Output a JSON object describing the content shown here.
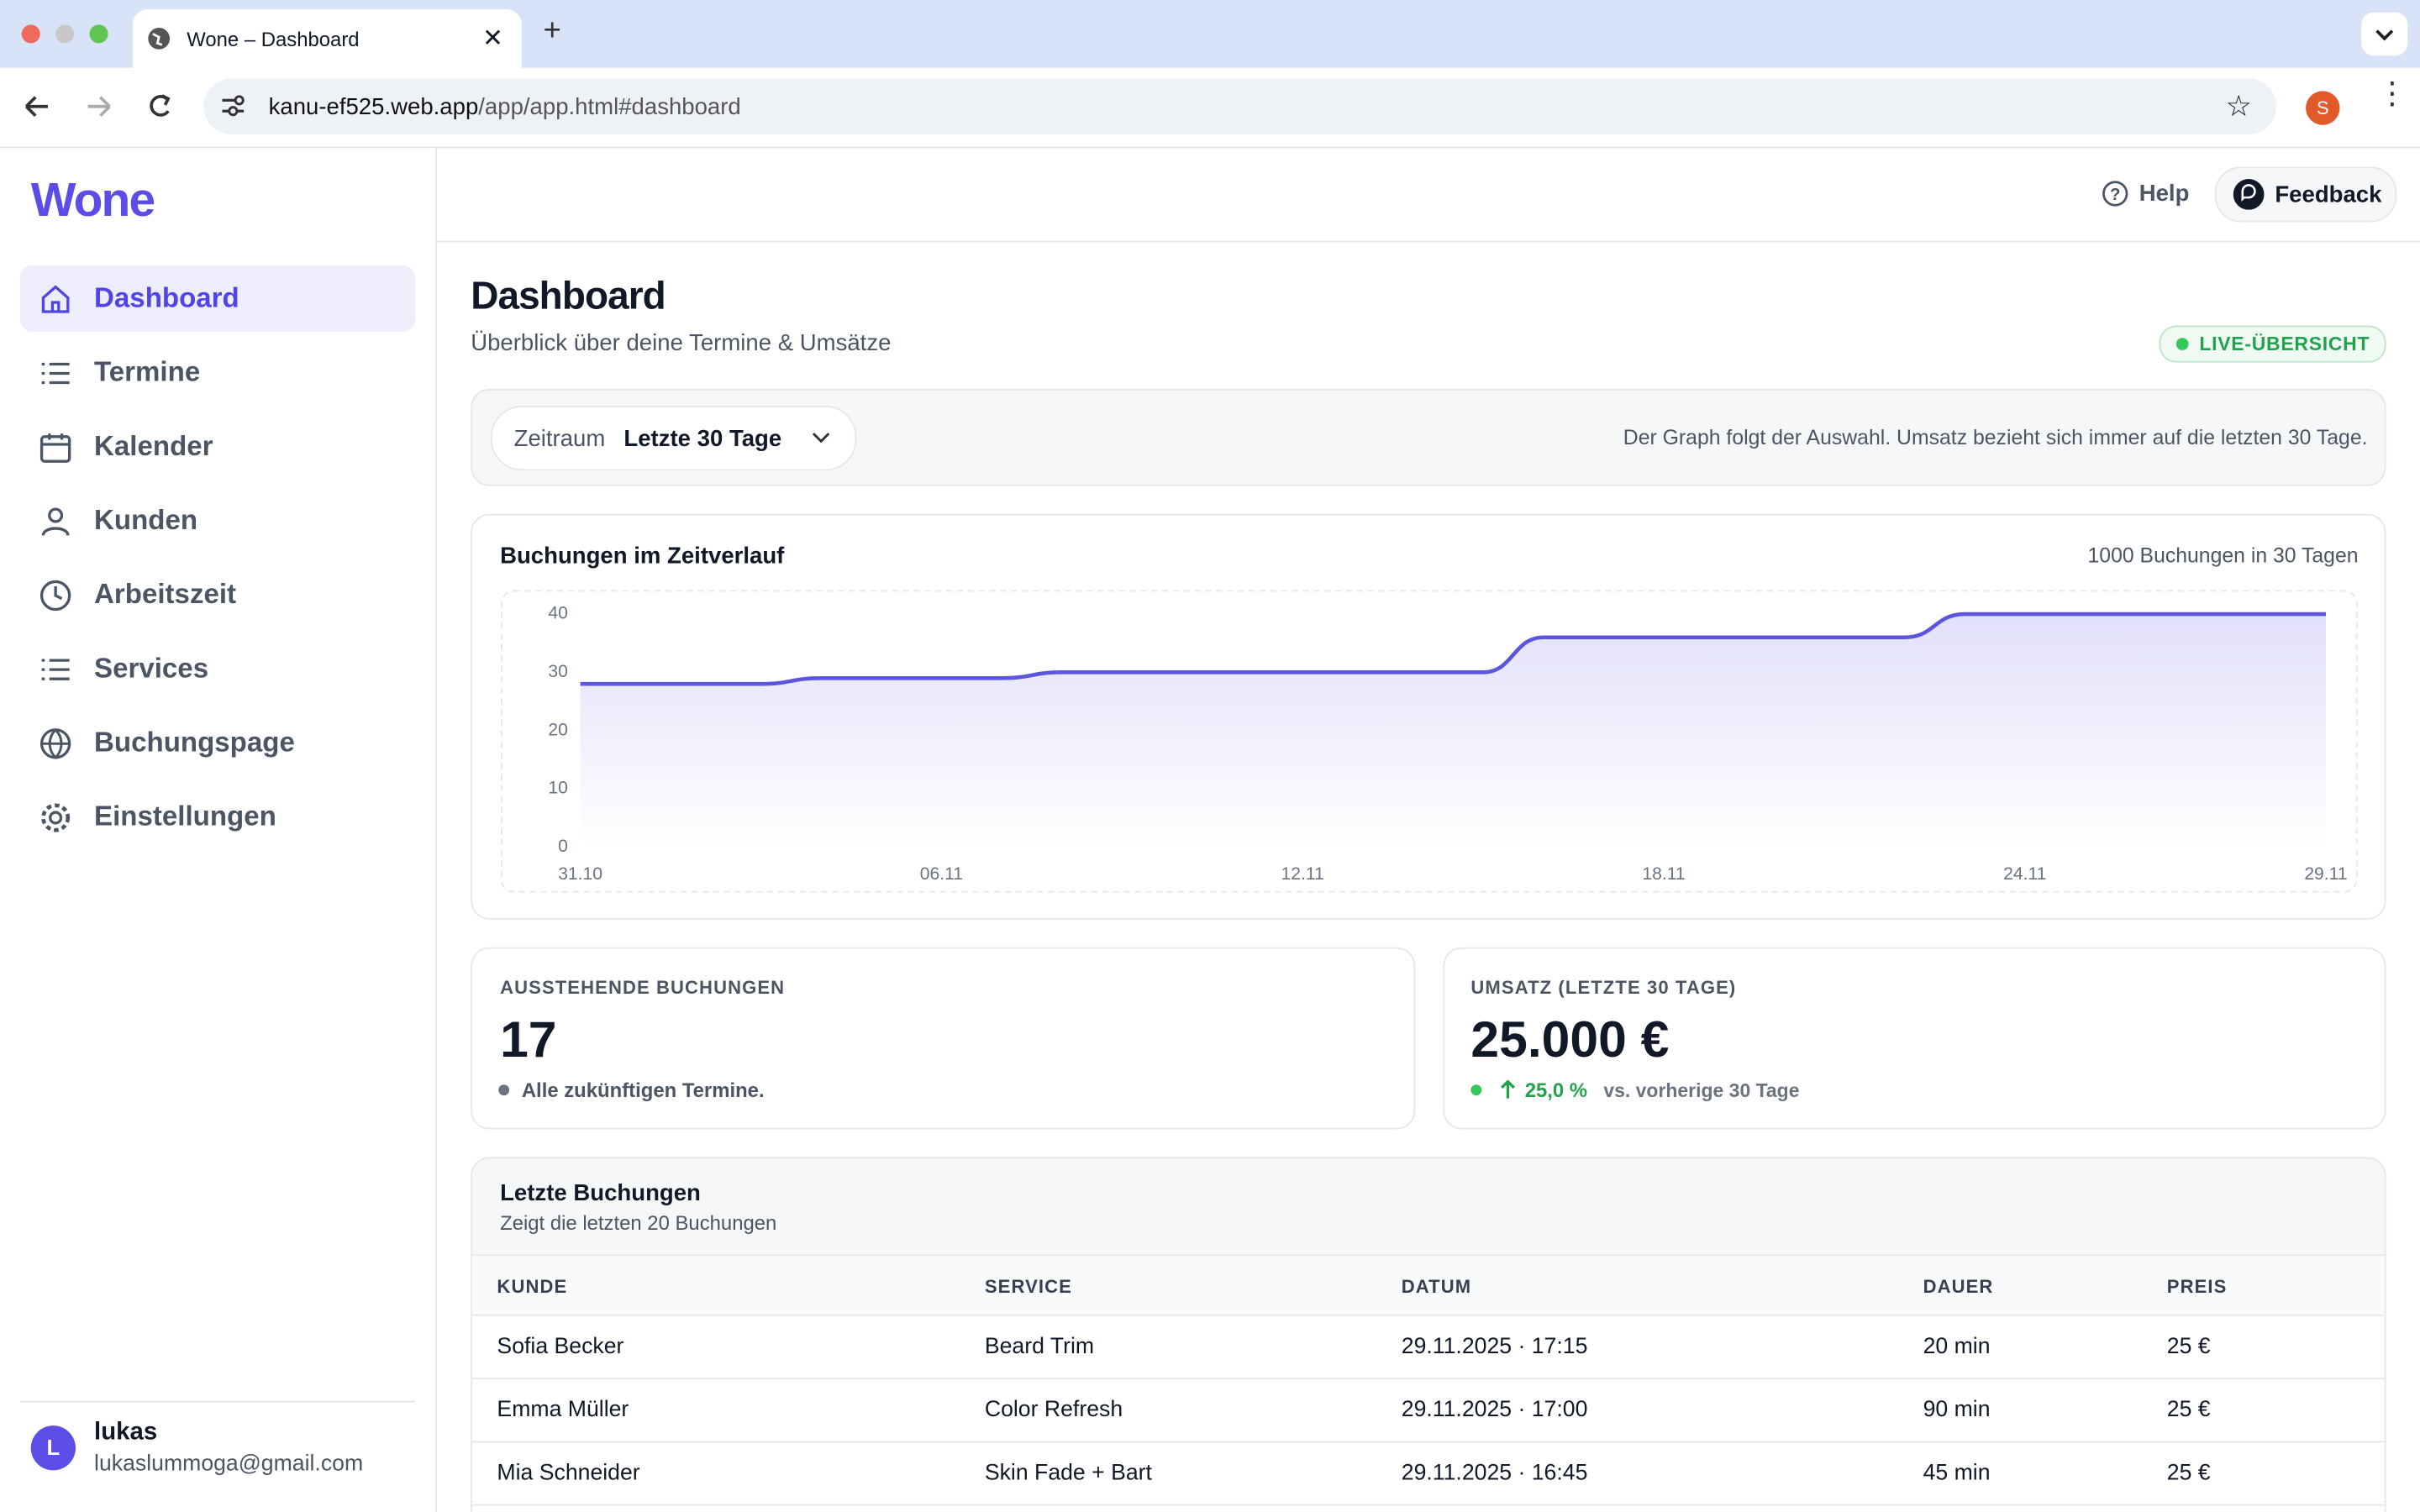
{
  "browser": {
    "tab_title": "Wone – Dashboard",
    "url_host": "kanu-ef525.web.app",
    "url_path": "/app/app.html#dashboard",
    "profile": "S"
  },
  "sidebar": {
    "logo": "Wone",
    "nav": [
      "Dashboard",
      "Termine",
      "Kalender",
      "Kunden",
      "Arbeitszeit",
      "Services",
      "Buchungspage",
      "Einstellungen"
    ],
    "user": {
      "initial": "L",
      "name": "lukas",
      "email": "lukaslummoga@gmail.com"
    }
  },
  "topbar": {
    "help": "Help",
    "feedback": "Feedback"
  },
  "page": {
    "title": "Dashboard",
    "subtitle": "Überblick über deine Termine & Umsätze",
    "badge": "LIVE-ÜBERSICHT"
  },
  "filter": {
    "label": "Zeitraum",
    "value": "Letzte 30 Tage",
    "note": "Der Graph folgt der Auswahl. Umsatz bezieht sich immer auf die letzten 30 Tage."
  },
  "chart_data": {
    "type": "line",
    "title": "Buchungen im Zeitverlauf",
    "summary": "1000 Buchungen in 30 Tagen",
    "categories": [
      "31.10",
      null,
      null,
      null,
      null,
      null,
      "06.11",
      null,
      null,
      null,
      null,
      null,
      "12.11",
      null,
      null,
      null,
      null,
      null,
      "18.11",
      null,
      null,
      null,
      null,
      null,
      "24.11",
      null,
      null,
      null,
      null,
      "29.11"
    ],
    "values": [
      28,
      28,
      28,
      28,
      29,
      29,
      29,
      29,
      30,
      30,
      30,
      30,
      30,
      30,
      30,
      30,
      36,
      36,
      36,
      36,
      36,
      36,
      36,
      40,
      40,
      40,
      40,
      40,
      40,
      40
    ],
    "color": "#5b55e0",
    "ylim": [
      0,
      40
    ],
    "yticks": [
      0,
      10,
      20,
      30,
      40
    ],
    "grid": false
  },
  "stats": [
    {
      "label": "AUSSTEHENDE BUCHUNGEN",
      "value": "17",
      "note": "Alle zukünftigen Termine."
    },
    {
      "label": "UMSATZ (LETZTE 30 TAGE)",
      "value": "25.000 €",
      "change": "25,0 %",
      "note": "vs. vorherige 30 Tage"
    }
  ],
  "table": {
    "title": "Letzte Buchungen",
    "subtitle": "Zeigt die letzten 20 Buchungen",
    "columns": [
      "KUNDE",
      "SERVICE",
      "DATUM",
      "DAUER",
      "PREIS"
    ],
    "rows": [
      [
        "Sofia Becker",
        "Beard Trim",
        "29.11.2025 · 17:15",
        "20 min",
        "25 €"
      ],
      [
        "Emma Müller",
        "Color Refresh",
        "29.11.2025 · 17:00",
        "90 min",
        "25 €"
      ],
      [
        "Mia Schneider",
        "Skin Fade + Bart",
        "29.11.2025 · 16:45",
        "45 min",
        "25 €"
      ]
    ]
  }
}
